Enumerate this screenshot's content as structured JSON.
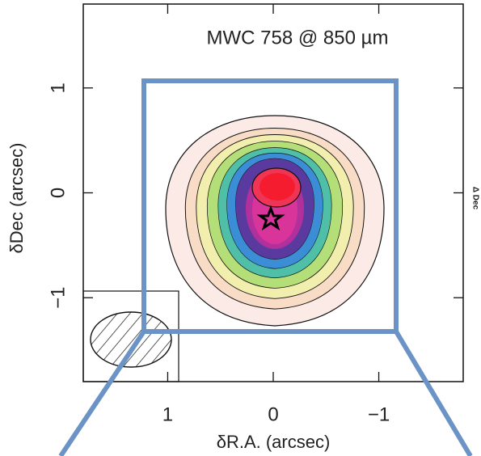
{
  "chart_data": {
    "type": "image",
    "title": "MWC 758 @ 850 µm",
    "x_label": "δR.A. (arcsec)",
    "y_label": "δDec (arcsec)",
    "side_label": "Δ Dec",
    "xlim": [
      1.8,
      -1.8
    ],
    "ylim": [
      -1.8,
      1.8
    ],
    "xticks": [
      1,
      0,
      {
        "value": -1,
        "label": "−1"
      }
    ],
    "yticks": [
      1,
      0,
      {
        "value": -1,
        "label": "−1"
      }
    ]
  }
}
